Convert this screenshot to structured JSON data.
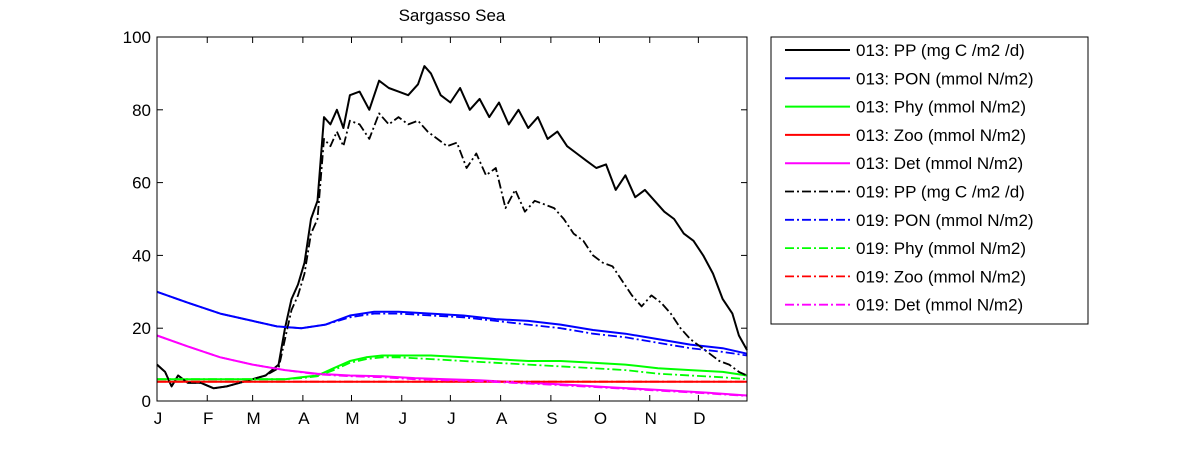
{
  "chart_data": {
    "type": "line",
    "title": "Sargasso Sea",
    "xlabel": "",
    "ylabel": "",
    "xlim": [
      1,
      365
    ],
    "ylim": [
      0,
      100
    ],
    "yticks": [
      0,
      20,
      40,
      60,
      80,
      100
    ],
    "month_ticks": [
      {
        "label": "J",
        "day": 1
      },
      {
        "label": "F",
        "day": 32
      },
      {
        "label": "M",
        "day": 60
      },
      {
        "label": "A",
        "day": 91
      },
      {
        "label": "M",
        "day": 121
      },
      {
        "label": "J",
        "day": 152
      },
      {
        "label": "J",
        "day": 182
      },
      {
        "label": "A",
        "day": 213
      },
      {
        "label": "S",
        "day": 244
      },
      {
        "label": "O",
        "day": 274
      },
      {
        "label": "N",
        "day": 305
      },
      {
        "label": "D",
        "day": 335
      }
    ],
    "grid": false,
    "legend_position": "outside-right",
    "series": [
      {
        "name": "013: PP (mg C /m2 /d)",
        "color": "#000000",
        "style": "solid",
        "x": [
          1,
          6,
          10,
          14,
          20,
          28,
          36,
          44,
          52,
          60,
          68,
          76,
          80,
          84,
          88,
          92,
          96,
          100,
          104,
          108,
          112,
          116,
          120,
          126,
          132,
          138,
          144,
          150,
          156,
          162,
          166,
          170,
          176,
          182,
          188,
          194,
          200,
          206,
          212,
          218,
          224,
          230,
          236,
          242,
          248,
          254,
          260,
          266,
          272,
          278,
          284,
          290,
          296,
          302,
          308,
          314,
          320,
          326,
          332,
          338,
          344,
          350,
          356,
          360,
          365
        ],
        "y": [
          10,
          8,
          4,
          7,
          5,
          5,
          3.5,
          4,
          5,
          6,
          7,
          10,
          20,
          28,
          32,
          38,
          50,
          55,
          78,
          76,
          80,
          75,
          84,
          85,
          80,
          88,
          86,
          85,
          84,
          87,
          92,
          90,
          84,
          82,
          86,
          80,
          83,
          78,
          82,
          76,
          80,
          75,
          78,
          72,
          74,
          70,
          68,
          66,
          64,
          65,
          58,
          62,
          56,
          58,
          55,
          52,
          50,
          46,
          44,
          40,
          35,
          28,
          24,
          18,
          14
        ]
      },
      {
        "name": "013: PON (mmol N/m2)",
        "color": "#0000ff",
        "style": "solid",
        "x": [
          1,
          20,
          40,
          60,
          75,
          90,
          105,
          120,
          135,
          150,
          170,
          190,
          210,
          230,
          250,
          270,
          290,
          310,
          330,
          350,
          365
        ],
        "y": [
          30,
          27,
          24,
          22,
          20.5,
          20,
          21,
          23.5,
          24.5,
          24.5,
          24,
          23.5,
          22.5,
          22,
          21,
          19.5,
          18.5,
          17,
          15.5,
          14.5,
          13
        ]
      },
      {
        "name": "013: Phy (mmol N/m2)",
        "color": "#00ff00",
        "style": "solid",
        "x": [
          1,
          30,
          60,
          80,
          90,
          100,
          110,
          120,
          130,
          140,
          150,
          170,
          190,
          210,
          230,
          250,
          270,
          290,
          310,
          330,
          350,
          365
        ],
        "y": [
          6,
          6,
          6,
          6,
          6.5,
          7,
          9,
          11,
          12,
          12.5,
          12.5,
          12.5,
          12,
          11.5,
          11,
          11,
          10.5,
          10,
          9,
          8.5,
          8,
          7
        ]
      },
      {
        "name": "013: Zoo (mmol N/m2)",
        "color": "#ff0000",
        "style": "solid",
        "x": [
          1,
          365
        ],
        "y": [
          5.3,
          5.3
        ]
      },
      {
        "name": "013: Det (mmol N/m2)",
        "color": "#ff00ff",
        "style": "solid",
        "x": [
          1,
          20,
          40,
          60,
          80,
          100,
          120,
          140,
          160,
          180,
          200,
          220,
          240,
          260,
          280,
          300,
          320,
          340,
          365
        ],
        "y": [
          18,
          15,
          12,
          10,
          8.5,
          7.5,
          7,
          6.8,
          6.3,
          6,
          5.7,
          5.2,
          4.8,
          4.3,
          3.8,
          3.3,
          2.8,
          2.3,
          1.5
        ]
      },
      {
        "name": "019: PP (mg C /m2 /d)",
        "color": "#000000",
        "style": "dashdot",
        "x": [
          1,
          6,
          10,
          14,
          20,
          28,
          36,
          44,
          52,
          60,
          68,
          76,
          80,
          84,
          88,
          92,
          96,
          100,
          104,
          108,
          112,
          116,
          120,
          126,
          132,
          138,
          144,
          150,
          156,
          162,
          168,
          174,
          180,
          186,
          192,
          198,
          204,
          210,
          216,
          222,
          228,
          234,
          240,
          246,
          252,
          258,
          264,
          270,
          276,
          282,
          288,
          294,
          300,
          306,
          312,
          318,
          324,
          330,
          336,
          342,
          348,
          354,
          360,
          365
        ],
        "y": [
          10,
          8,
          4,
          7,
          5,
          5,
          3.5,
          4,
          5,
          6,
          7,
          9,
          17,
          25,
          29,
          35,
          46,
          50,
          72,
          70,
          74,
          70,
          77,
          76,
          72,
          79,
          76,
          78,
          76,
          77,
          74,
          72,
          70,
          71,
          64,
          68,
          62,
          64,
          53,
          58,
          52,
          55,
          54,
          53,
          50,
          46,
          44,
          40,
          38,
          37,
          33,
          29,
          26,
          29,
          27,
          24,
          20,
          17,
          15,
          13,
          11,
          10,
          8,
          7
        ]
      },
      {
        "name": "019: PON (mmol N/m2)",
        "color": "#0000ff",
        "style": "dashdot",
        "x": [
          1,
          20,
          40,
          60,
          75,
          90,
          105,
          120,
          135,
          150,
          170,
          190,
          210,
          230,
          250,
          270,
          290,
          310,
          330,
          350,
          365
        ],
        "y": [
          30,
          27,
          24,
          22,
          20.5,
          20,
          21,
          23,
          24,
          24,
          23.5,
          23,
          22,
          21,
          20,
          18.5,
          17.5,
          16,
          14.5,
          13.5,
          12.5
        ]
      },
      {
        "name": "019: Phy (mmol N/m2)",
        "color": "#00ff00",
        "style": "dashdot",
        "x": [
          1,
          30,
          60,
          80,
          90,
          100,
          110,
          120,
          130,
          140,
          150,
          170,
          190,
          210,
          230,
          250,
          270,
          290,
          310,
          330,
          350,
          365
        ],
        "y": [
          6,
          6,
          6,
          6,
          6.3,
          6.8,
          8.5,
          10.5,
          11.5,
          12,
          12,
          11.5,
          11,
          10.5,
          10,
          9.5,
          9,
          8.5,
          7.5,
          7,
          6.5,
          6
        ]
      },
      {
        "name": "019: Zoo (mmol N/m2)",
        "color": "#ff0000",
        "style": "dashdot",
        "x": [
          1,
          365
        ],
        "y": [
          5.3,
          5.3
        ]
      },
      {
        "name": "019: Det (mmol N/m2)",
        "color": "#ff00ff",
        "style": "dashdot",
        "x": [
          1,
          20,
          40,
          60,
          80,
          100,
          120,
          140,
          160,
          180,
          200,
          220,
          240,
          260,
          280,
          300,
          320,
          340,
          365
        ],
        "y": [
          18,
          15,
          12,
          10,
          8.5,
          7.3,
          6.8,
          6.5,
          6,
          5.7,
          5.4,
          5,
          4.6,
          4.1,
          3.6,
          3.1,
          2.6,
          2.1,
          1.4
        ]
      }
    ]
  }
}
